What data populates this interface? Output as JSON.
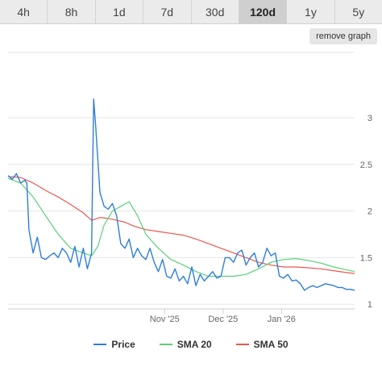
{
  "tabs": [
    {
      "label": "4h",
      "active": false
    },
    {
      "label": "8h",
      "active": false
    },
    {
      "label": "1d",
      "active": false
    },
    {
      "label": "7d",
      "active": false
    },
    {
      "label": "30d",
      "active": false
    },
    {
      "label": "120d",
      "active": true
    },
    {
      "label": "1y",
      "active": false
    },
    {
      "label": "5y",
      "active": false
    }
  ],
  "remove_graph_label": "remove graph",
  "colors": {
    "price": "#2f7ed8",
    "sma20": "#5ad07a",
    "sma50": "#e8584f",
    "grid": "#e6e6e6",
    "tick": "#666666"
  },
  "chart_data": {
    "type": "line",
    "x_tick_labels": [
      "Nov '25",
      "Dec '25",
      "Jan '26"
    ],
    "x_tick_positions": [
      75,
      103,
      131
    ],
    "xlim": [
      0,
      166
    ],
    "ylim": [
      0.95,
      3.7
    ],
    "y_ticks": [
      1,
      1.5,
      2,
      2.5,
      3
    ],
    "y_tick_labels": [
      "1",
      "1.5",
      "2",
      "2.5",
      "3"
    ],
    "grid": true,
    "legend_position": "bottom",
    "series": [
      {
        "name": "Price",
        "key": "price",
        "x": [
          0,
          2,
          4,
          6,
          8,
          9,
          10,
          12,
          14,
          16,
          18,
          20,
          22,
          24,
          26,
          28,
          30,
          32,
          34,
          36,
          38,
          40,
          41,
          42,
          43,
          44,
          46,
          48,
          50,
          52,
          54,
          56,
          58,
          60,
          62,
          64,
          66,
          68,
          70,
          72,
          74,
          76,
          78,
          80,
          82,
          84,
          86,
          88,
          90,
          92,
          94,
          96,
          98,
          100,
          102,
          104,
          106,
          108,
          110,
          112,
          114,
          116,
          118,
          120,
          122,
          124,
          126,
          128,
          130,
          132,
          134,
          136,
          138,
          140,
          142,
          144,
          146,
          148,
          150,
          152,
          154,
          156,
          158,
          160,
          162,
          164,
          166
        ],
        "values": [
          2.38,
          2.34,
          2.4,
          2.3,
          2.33,
          2.3,
          1.8,
          1.55,
          1.72,
          1.5,
          1.48,
          1.52,
          1.55,
          1.5,
          1.6,
          1.55,
          1.45,
          1.62,
          1.4,
          1.6,
          1.38,
          1.55,
          3.2,
          2.9,
          2.55,
          2.2,
          2.05,
          2.02,
          2.08,
          1.95,
          1.65,
          1.6,
          1.7,
          1.5,
          1.6,
          1.52,
          1.48,
          1.6,
          1.45,
          1.35,
          1.48,
          1.3,
          1.28,
          1.38,
          1.25,
          1.3,
          1.22,
          1.4,
          1.2,
          1.32,
          1.25,
          1.3,
          1.35,
          1.28,
          1.3,
          1.5,
          1.5,
          1.45,
          1.55,
          1.58,
          1.42,
          1.5,
          1.55,
          1.4,
          1.45,
          1.6,
          1.52,
          1.55,
          1.3,
          1.28,
          1.32,
          1.25,
          1.26,
          1.22,
          1.15,
          1.18,
          1.2,
          1.18,
          1.2,
          1.22,
          1.21,
          1.2,
          1.18,
          1.18,
          1.16,
          1.16,
          1.15
        ]
      },
      {
        "name": "SMA 20",
        "key": "sma20",
        "x": [
          0,
          6,
          12,
          18,
          24,
          30,
          36,
          40,
          43,
          46,
          50,
          54,
          58,
          62,
          66,
          72,
          78,
          84,
          90,
          96,
          102,
          108,
          114,
          120,
          126,
          132,
          138,
          144,
          150,
          156,
          162,
          166
        ],
        "values": [
          2.35,
          2.3,
          2.15,
          1.95,
          1.75,
          1.6,
          1.55,
          1.52,
          1.62,
          1.85,
          2.0,
          2.05,
          2.1,
          1.95,
          1.75,
          1.6,
          1.48,
          1.42,
          1.35,
          1.3,
          1.3,
          1.3,
          1.32,
          1.38,
          1.45,
          1.48,
          1.49,
          1.47,
          1.44,
          1.4,
          1.37,
          1.35
        ]
      },
      {
        "name": "SMA 50",
        "key": "sma50",
        "x": [
          0,
          6,
          12,
          18,
          24,
          30,
          36,
          40,
          44,
          48,
          52,
          56,
          60,
          66,
          72,
          78,
          84,
          90,
          96,
          102,
          108,
          114,
          120,
          126,
          132,
          138,
          144,
          150,
          156,
          162,
          166
        ],
        "values": [
          2.37,
          2.36,
          2.3,
          2.22,
          2.15,
          2.07,
          1.98,
          1.9,
          1.93,
          1.92,
          1.9,
          1.88,
          1.84,
          1.8,
          1.78,
          1.76,
          1.74,
          1.7,
          1.65,
          1.6,
          1.55,
          1.5,
          1.45,
          1.42,
          1.4,
          1.4,
          1.39,
          1.38,
          1.36,
          1.34,
          1.33
        ]
      }
    ]
  }
}
